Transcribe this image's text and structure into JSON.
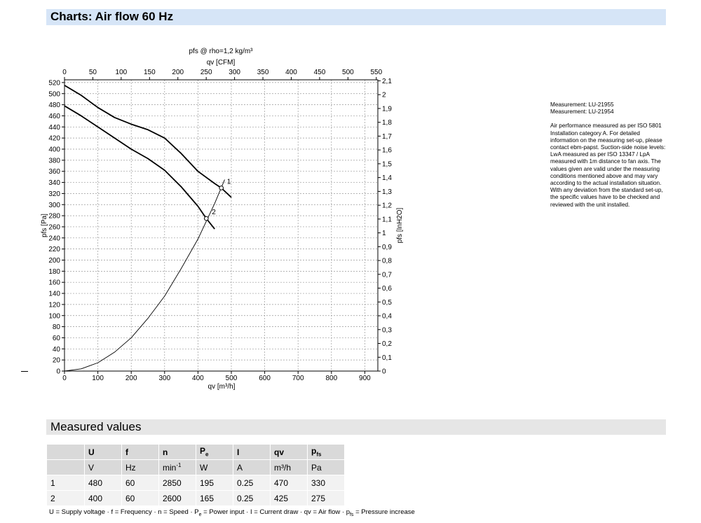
{
  "header": {
    "title": "Charts: Air flow 60 Hz"
  },
  "chart_data": {
    "type": "line",
    "title": "pfs @ rho=1,2 kg/m³",
    "xlabel": "qv [m³/h]",
    "ylabel": "pfs [Pa]",
    "x2label": "qv [CFM]",
    "y2label": "pfs [InH2O]",
    "xlim": [
      0,
      940
    ],
    "ylim": [
      0,
      525
    ],
    "xticks": [
      0,
      100,
      200,
      300,
      400,
      500,
      600,
      700,
      800,
      900
    ],
    "yticks": [
      0,
      20,
      40,
      60,
      80,
      100,
      120,
      140,
      160,
      180,
      200,
      220,
      240,
      260,
      280,
      300,
      320,
      340,
      360,
      380,
      400,
      420,
      440,
      460,
      480,
      500,
      520
    ],
    "x2ticks": [
      0,
      50,
      100,
      150,
      200,
      250,
      300,
      350,
      400,
      450,
      500,
      550
    ],
    "y2ticks": [
      "0",
      "0,1",
      "0,2",
      "0,3",
      "0,4",
      "0,5",
      "0,6",
      "0,7",
      "0,8",
      "0,9",
      "1",
      "1,1",
      "1,2",
      "1,3",
      "1,4",
      "1,5",
      "1,6",
      "1,7",
      "1,8",
      "1,9",
      "2",
      "2,1"
    ],
    "grid": true,
    "series": [
      {
        "x": [
          0,
          50,
          100,
          150,
          200,
          250,
          300,
          350,
          400,
          450,
          470,
          500
        ],
        "y": [
          515,
          497,
          475,
          457,
          445,
          435,
          420,
          392,
          360,
          338,
          330,
          313
        ]
      },
      {
        "x": [
          0,
          50,
          100,
          150,
          200,
          250,
          300,
          350,
          400,
          425,
          450
        ],
        "y": [
          478,
          460,
          440,
          420,
          400,
          383,
          362,
          332,
          297,
          275,
          256
        ]
      },
      {
        "x": [
          0,
          50,
          100,
          150,
          200,
          250,
          300,
          350,
          400,
          450,
          480
        ],
        "y": [
          0,
          4,
          15,
          34,
          60,
          95,
          135,
          185,
          238,
          302,
          345
        ]
      }
    ],
    "points": [
      {
        "label": "1",
        "x": 470,
        "y": 330
      },
      {
        "label": "2",
        "x": 425,
        "y": 275
      }
    ]
  },
  "notes": {
    "measurement_1": "Measurement: LU-21955",
    "measurement_2": "Measurement: LU-21954",
    "text": "Air performance measured as per ISO 5801 Installation category A. For detailed information on the measuring set-up, please contact ebm-papst. Suction-side noise levels: LwA measured as per ISO 13347 / LpA measured with 1m distance to fan axis. The values given are valid under the measuring conditions mentioned above and may vary according to the actual installation situation. With any deviation from the standard set-up, the specific values have to be checked and reviewed with the unit installed."
  },
  "measured": {
    "title": "Measured values",
    "headers": [
      "",
      "U",
      "f",
      "n",
      "P",
      "I",
      "qv",
      "p"
    ],
    "header_subs": [
      "",
      "",
      "",
      "",
      "e",
      "",
      "",
      "fs"
    ],
    "units": [
      "",
      "V",
      "Hz",
      "min",
      "W",
      "A",
      "m³/h",
      "Pa"
    ],
    "unit_sup_n": "-1",
    "rows": [
      [
        "1",
        "480",
        "60",
        "2850",
        "195",
        "0.25",
        "470",
        "330"
      ],
      [
        "2",
        "400",
        "60",
        "2600",
        "165",
        "0.25",
        "425",
        "275"
      ]
    ],
    "legend_a": "U = Supply voltage · f = Frequency · n = Speed · P",
    "legend_a_sub": "e",
    "legend_b": " = Power input · I = Current draw · qv = Air flow · p",
    "legend_b_sub": "fs",
    "legend_c": " = Pressure increase"
  }
}
